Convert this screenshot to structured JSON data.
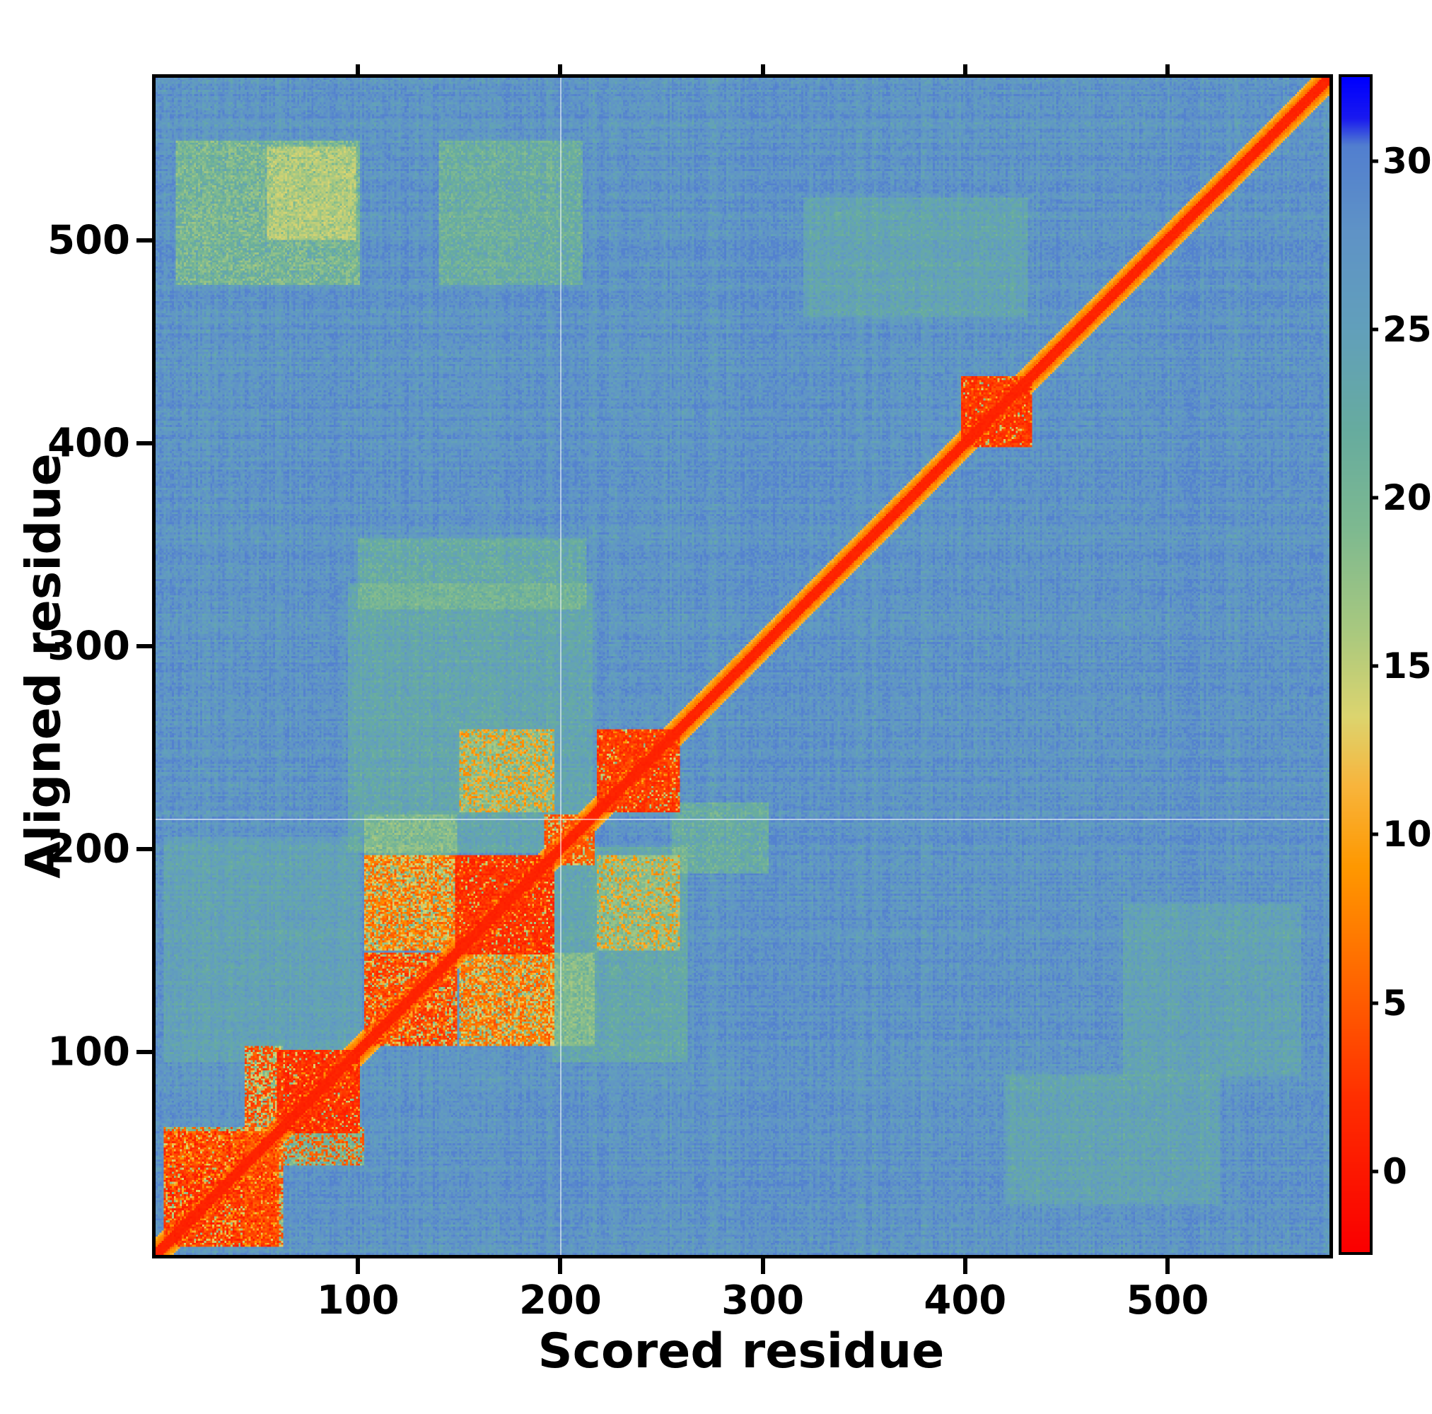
{
  "chart_data": {
    "type": "heatmap",
    "title": "",
    "xlabel": "Scored residue",
    "ylabel": "Aligned residue",
    "x_range": [
      0,
      580
    ],
    "y_range": [
      0,
      580
    ],
    "x_ticks": [
      100,
      200,
      300,
      400,
      500
    ],
    "y_ticks": [
      100,
      200,
      300,
      400,
      500
    ],
    "colorbar_ticks": [
      0,
      5,
      10,
      15,
      20,
      25,
      30
    ],
    "value_min": -2.4,
    "value_max": 32.5,
    "background_value": 27.5,
    "background_clamp": 30.3,
    "noise": {
      "seed": 42,
      "cell": 2.2,
      "streak": 1.4
    },
    "colormap": [
      [
        -2.4,
        "#fa0000"
      ],
      [
        2,
        "#ff2d00"
      ],
      [
        6,
        "#ff6c00"
      ],
      [
        9,
        "#ff9800"
      ],
      [
        11.5,
        "#f8b63e"
      ],
      [
        13.5,
        "#ddd56f"
      ],
      [
        16,
        "#aac97f"
      ],
      [
        19,
        "#7fba90"
      ],
      [
        22,
        "#67ac9f"
      ],
      [
        25,
        "#62a0bb"
      ],
      [
        28,
        "#5f93c7"
      ],
      [
        30.5,
        "#527fd0"
      ],
      [
        31.3,
        "#1a1af0"
      ],
      [
        32.5,
        "#0000ff"
      ]
    ],
    "diagonal": {
      "core_value": 0.5,
      "core_half_width": 3,
      "fringe_value": 4,
      "fringe_half_width": 8
    },
    "domain_blocks": [
      {
        "x0": 4,
        "x1": 60,
        "y0": 4,
        "y1": 60,
        "value": 2.5,
        "speckle": 0.72,
        "jitter": 2.8
      },
      {
        "x0": 44,
        "x1": 62,
        "y0": 4,
        "y1": 102,
        "value": 4,
        "speckle": 0.5,
        "jitter": 2
      },
      {
        "x0": 4,
        "x1": 102,
        "y0": 44,
        "y1": 62,
        "value": 5,
        "speckle": 0.35,
        "jitter": 2
      },
      {
        "x0": 60,
        "x1": 100,
        "y0": 60,
        "y1": 100,
        "value": 2,
        "speckle": 0.85,
        "jitter": 2
      },
      {
        "x0": 103,
        "x1": 148,
        "y0": 103,
        "y1": 148,
        "value": 3.5,
        "speckle": 0.7,
        "jitter": 2.5
      },
      {
        "x0": 103,
        "x1": 148,
        "y0": 150,
        "y1": 196,
        "value": 6.5,
        "speckle": 0.55,
        "jitter": 2.5
      },
      {
        "x0": 150,
        "x1": 196,
        "y0": 103,
        "y1": 148,
        "value": 6.5,
        "speckle": 0.55,
        "jitter": 2.5
      },
      {
        "x0": 148,
        "x1": 196,
        "y0": 148,
        "y1": 196,
        "value": 2.2,
        "speckle": 0.85,
        "jitter": 2
      },
      {
        "x0": 192,
        "x1": 216,
        "y0": 192,
        "y1": 216,
        "value": 4.5,
        "speckle": 0.7,
        "jitter": 2
      },
      {
        "x0": 218,
        "x1": 258,
        "y0": 218,
        "y1": 258,
        "value": 2.8,
        "speckle": 0.85,
        "jitter": 2
      },
      {
        "x0": 150,
        "x1": 196,
        "y0": 218,
        "y1": 258,
        "value": 9.5,
        "speckle": 0.35,
        "jitter": 2
      },
      {
        "x0": 218,
        "x1": 258,
        "y0": 150,
        "y1": 196,
        "value": 9.5,
        "speckle": 0.28,
        "jitter": 2
      },
      {
        "x0": 398,
        "x1": 432,
        "y0": 398,
        "y1": 432,
        "value": 2.5,
        "speckle": 0.85,
        "jitter": 2
      }
    ],
    "haze_patches": [
      {
        "x0": 4,
        "x1": 60,
        "y0": 4,
        "y1": 60,
        "value": 8,
        "alpha": 0.8
      },
      {
        "x0": 44,
        "x1": 62,
        "y0": 4,
        "y1": 102,
        "value": 9,
        "alpha": 0.6
      },
      {
        "x0": 4,
        "x1": 102,
        "y0": 44,
        "y1": 62,
        "value": 10,
        "alpha": 0.45
      },
      {
        "x0": 60,
        "x1": 100,
        "y0": 60,
        "y1": 100,
        "value": 8,
        "alpha": 0.75
      },
      {
        "x0": 103,
        "x1": 148,
        "y0": 103,
        "y1": 148,
        "value": 9,
        "alpha": 0.7
      },
      {
        "x0": 148,
        "x1": 196,
        "y0": 148,
        "y1": 196,
        "value": 8,
        "alpha": 0.75
      },
      {
        "x0": 103,
        "x1": 148,
        "y0": 150,
        "y1": 196,
        "value": 11,
        "alpha": 0.7
      },
      {
        "x0": 150,
        "x1": 196,
        "y0": 103,
        "y1": 148,
        "value": 11,
        "alpha": 0.7
      },
      {
        "x0": 192,
        "x1": 216,
        "y0": 192,
        "y1": 216,
        "value": 10,
        "alpha": 0.7
      },
      {
        "x0": 218,
        "x1": 258,
        "y0": 218,
        "y1": 258,
        "value": 8,
        "alpha": 0.75
      },
      {
        "x0": 398,
        "x1": 432,
        "y0": 398,
        "y1": 432,
        "value": 8,
        "alpha": 0.75
      },
      {
        "x0": 150,
        "x1": 196,
        "y0": 218,
        "y1": 258,
        "value": 13.5,
        "alpha": 0.6
      },
      {
        "x0": 218,
        "x1": 258,
        "y0": 150,
        "y1": 196,
        "value": 13.5,
        "alpha": 0.55
      },
      {
        "x0": 10,
        "x1": 100,
        "y0": 478,
        "y1": 548,
        "value": 14,
        "alpha": 0.55
      },
      {
        "x0": 55,
        "x1": 98,
        "y0": 500,
        "y1": 545,
        "value": 12.5,
        "alpha": 0.55
      },
      {
        "x0": 140,
        "x1": 210,
        "y0": 478,
        "y1": 548,
        "value": 14.5,
        "alpha": 0.45
      },
      {
        "x0": 95,
        "x1": 215,
        "y0": 198,
        "y1": 330,
        "value": 16.5,
        "alpha": 0.35
      },
      {
        "x0": 100,
        "x1": 212,
        "y0": 318,
        "y1": 352,
        "value": 15,
        "alpha": 0.4
      },
      {
        "x0": 196,
        "x1": 262,
        "y0": 95,
        "y1": 200,
        "value": 16,
        "alpha": 0.35
      },
      {
        "x0": 320,
        "x1": 430,
        "y0": 462,
        "y1": 520,
        "value": 16.5,
        "alpha": 0.32
      },
      {
        "x0": 478,
        "x1": 565,
        "y0": 88,
        "y1": 172,
        "value": 17,
        "alpha": 0.3
      },
      {
        "x0": 420,
        "x1": 525,
        "y0": 25,
        "y1": 88,
        "value": 16.5,
        "alpha": 0.3
      },
      {
        "x0": 255,
        "x1": 302,
        "y0": 188,
        "y1": 222,
        "value": 14.5,
        "alpha": 0.4
      },
      {
        "x0": 4,
        "x1": 100,
        "y0": 95,
        "y1": 205,
        "value": 17,
        "alpha": 0.28
      },
      {
        "x0": 103,
        "x1": 148,
        "y0": 192,
        "y1": 216,
        "value": 13,
        "alpha": 0.45
      },
      {
        "x0": 192,
        "x1": 216,
        "y0": 103,
        "y1": 148,
        "value": 13,
        "alpha": 0.45
      }
    ],
    "gridlines": {
      "vertical_x": 200,
      "horizontal_y": 215,
      "color": "rgba(255,255,255,0.55)",
      "width": 2
    }
  }
}
